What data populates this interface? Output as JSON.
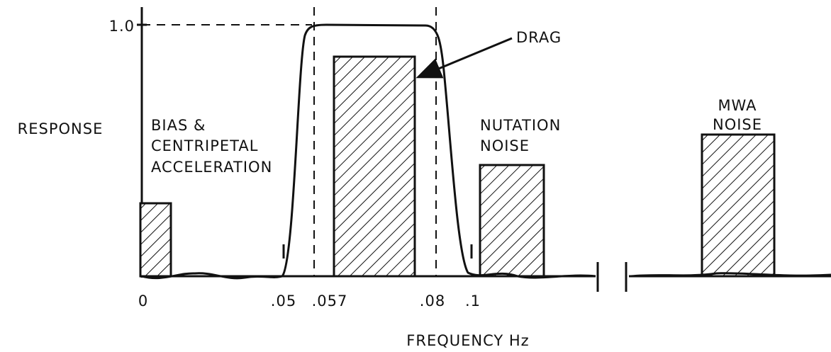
{
  "axis": {
    "y_label": "RESPONSE",
    "x_label": "FREQUENCY Hz",
    "y_tick": "1.0",
    "x_ticks": [
      "0",
      ".05",
      ".057",
      ".08",
      ".1"
    ]
  },
  "annotations": {
    "bias": [
      "BIAS &",
      "CENTRIPETAL",
      "ACCELERATION"
    ],
    "drag": "DRAG",
    "nutation": [
      "NUTATION",
      "NOISE"
    ],
    "mwa": [
      "MWA",
      "NOISE"
    ]
  }
}
